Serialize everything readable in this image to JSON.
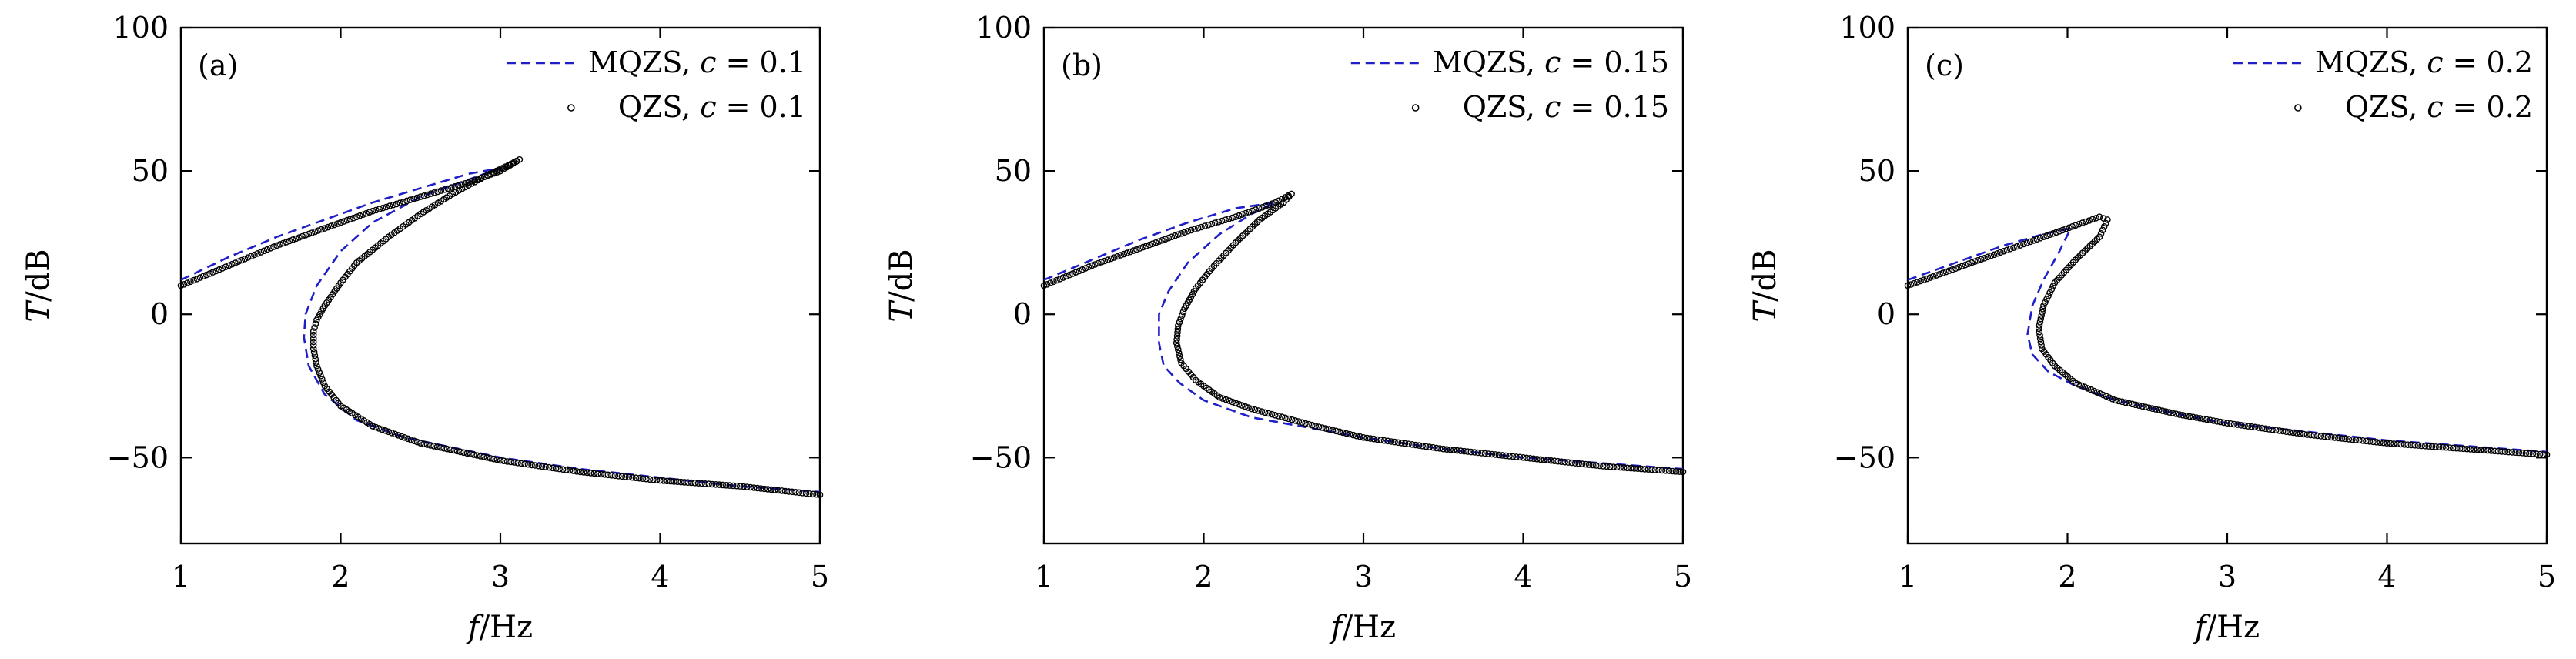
{
  "figure": {
    "panels_count": 3
  },
  "chart_data": [
    {
      "type": "line",
      "panel_label": "(a)",
      "xlabel": "f/Hz",
      "ylabel": "T/dB",
      "xlim": [
        1,
        5
      ],
      "ylim": [
        -80,
        100
      ],
      "xticks": [
        1,
        2,
        3,
        4,
        5
      ],
      "yticks": [
        -50,
        0,
        50,
        100
      ],
      "ytick_labels": [
        "−50",
        "0",
        "50",
        "100"
      ],
      "legend": [
        {
          "label": "MQZS, c = 0.1",
          "style": "dashed",
          "color": "#1f1fc8"
        },
        {
          "label": "QZS, c = 0.1",
          "style": "circle-markers",
          "color": "#000000"
        }
      ],
      "series": [
        {
          "name": "MQZS, c = 0.1",
          "x": [
            1.0,
            1.3,
            1.6,
            1.9,
            2.2,
            2.5,
            2.8,
            3.0,
            2.8,
            2.5,
            2.2,
            2.0,
            1.85,
            1.78,
            1.77,
            1.8,
            1.9,
            2.1,
            2.4,
            3.0,
            3.5,
            4.0,
            4.5,
            5.0
          ],
          "y": [
            12,
            20,
            27,
            33,
            39,
            44,
            49,
            51,
            47,
            41,
            32,
            22,
            10,
            0,
            -8,
            -18,
            -28,
            -37,
            -43,
            -50,
            -54,
            -57,
            -60,
            -62
          ]
        },
        {
          "name": "QZS, c = 0.1",
          "x": [
            1.0,
            1.3,
            1.6,
            1.9,
            2.2,
            2.5,
            2.8,
            3.0,
            3.12,
            3.05,
            2.9,
            2.7,
            2.5,
            2.3,
            2.1,
            2.0,
            1.9,
            1.85,
            1.83,
            1.83,
            1.85,
            1.9,
            2.0,
            2.2,
            2.5,
            3.0,
            3.5,
            4.0,
            4.5,
            5.0
          ],
          "y": [
            10,
            17,
            24,
            30,
            36,
            41,
            46,
            50,
            54,
            52,
            48,
            42,
            35,
            27,
            18,
            11,
            3,
            -2,
            -6,
            -12,
            -18,
            -25,
            -32,
            -39,
            -45,
            -51,
            -55,
            -58,
            -60,
            -63
          ]
        }
      ]
    },
    {
      "type": "line",
      "panel_label": "(b)",
      "xlabel": "f/Hz",
      "ylabel": "T/dB",
      "xlim": [
        1,
        5
      ],
      "ylim": [
        -80,
        100
      ],
      "xticks": [
        1,
        2,
        3,
        4,
        5
      ],
      "yticks": [
        -50,
        0,
        50,
        100
      ],
      "ytick_labels": [
        "−50",
        "0",
        "50",
        "100"
      ],
      "legend": [
        {
          "label": "MQZS, c = 0.15",
          "style": "dashed",
          "color": "#1f1fc8"
        },
        {
          "label": "QZS, c = 0.15",
          "style": "circle-markers",
          "color": "#000000"
        }
      ],
      "series": [
        {
          "name": "MQZS, c = 0.15",
          "x": [
            1.0,
            1.3,
            1.6,
            1.9,
            2.2,
            2.45,
            2.3,
            2.1,
            1.9,
            1.78,
            1.72,
            1.72,
            1.75,
            1.85,
            2.0,
            2.3,
            2.7,
            3.0,
            3.5,
            4.0,
            4.5,
            5.0
          ],
          "y": [
            12,
            19,
            26,
            32,
            37,
            39,
            35,
            28,
            18,
            8,
            0,
            -10,
            -18,
            -24,
            -30,
            -36,
            -40,
            -43,
            -47,
            -50,
            -52,
            -54
          ]
        },
        {
          "name": "QZS, c = 0.15",
          "x": [
            1.0,
            1.3,
            1.6,
            1.9,
            2.2,
            2.45,
            2.55,
            2.5,
            2.35,
            2.2,
            2.05,
            1.95,
            1.88,
            1.84,
            1.83,
            1.86,
            1.95,
            2.1,
            2.3,
            2.7,
            3.0,
            3.5,
            4.0,
            4.5,
            5.0
          ],
          "y": [
            10,
            17,
            23,
            29,
            34,
            39,
            42,
            39,
            33,
            25,
            16,
            9,
            2,
            -4,
            -10,
            -17,
            -23,
            -29,
            -33,
            -39,
            -43,
            -47,
            -50,
            -53,
            -55
          ]
        }
      ]
    },
    {
      "type": "line",
      "panel_label": "(c)",
      "xlabel": "f/Hz",
      "ylabel": "T/dB",
      "xlim": [
        1,
        5
      ],
      "ylim": [
        -80,
        100
      ],
      "xticks": [
        1,
        2,
        3,
        4,
        5
      ],
      "yticks": [
        -50,
        0,
        50,
        100
      ],
      "ytick_labels": [
        "−50",
        "0",
        "50",
        "100"
      ],
      "legend": [
        {
          "label": "MQZS, c = 0.2",
          "style": "dashed",
          "color": "#1f1fc8"
        },
        {
          "label": "QZS, c = 0.2",
          "style": "circle-markers",
          "color": "#000000"
        }
      ],
      "series": [
        {
          "name": "MQZS, c = 0.2",
          "x": [
            1.0,
            1.3,
            1.6,
            1.85,
            2.02,
            1.95,
            1.85,
            1.78,
            1.75,
            1.78,
            1.88,
            2.05,
            2.3,
            2.7,
            3.0,
            3.5,
            4.0,
            4.5,
            5.0
          ],
          "y": [
            12,
            18,
            24,
            28,
            30,
            22,
            12,
            3,
            -7,
            -14,
            -20,
            -25,
            -30,
            -35,
            -38,
            -41,
            -44,
            -46,
            -48
          ]
        },
        {
          "name": "QZS, c = 0.2",
          "x": [
            1.0,
            1.3,
            1.6,
            1.85,
            2.05,
            2.2,
            2.25,
            2.2,
            2.05,
            1.92,
            1.85,
            1.82,
            1.84,
            1.92,
            2.05,
            2.3,
            2.7,
            3.0,
            3.5,
            4.0,
            4.5,
            5.0
          ],
          "y": [
            10,
            16,
            22,
            27,
            31,
            34,
            33,
            27,
            19,
            11,
            3,
            -5,
            -12,
            -18,
            -24,
            -30,
            -35,
            -38,
            -42,
            -45,
            -47,
            -49
          ]
        }
      ]
    }
  ]
}
